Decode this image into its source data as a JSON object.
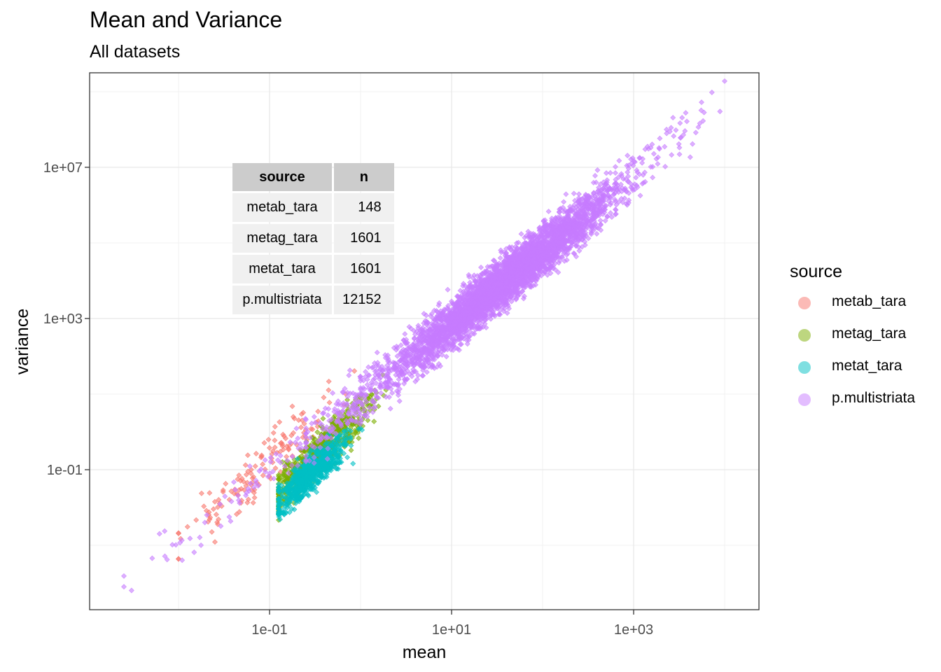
{
  "title": "Mean and Variance",
  "subtitle": "All datasets",
  "legend": {
    "title": "source",
    "items": [
      {
        "label": "metab_tara",
        "color": "#F8766D"
      },
      {
        "label": "metag_tara",
        "color": "#7CAE00"
      },
      {
        "label": "metat_tara",
        "color": "#00BFC4"
      },
      {
        "label": "p.multistriata",
        "color": "#C77CFF"
      }
    ]
  },
  "table": {
    "headers": [
      "source",
      "n"
    ],
    "rows": [
      [
        "metab_tara",
        "148"
      ],
      [
        "metag_tara",
        "1601"
      ],
      [
        "metat_tara",
        "1601"
      ],
      [
        "p.multistriata",
        "12152"
      ]
    ]
  },
  "chart_data": {
    "type": "scatter",
    "title": "Mean and Variance",
    "subtitle": "All datasets",
    "xlabel": "mean",
    "ylabel": "variance",
    "x_scale": "log10",
    "y_scale": "log10",
    "xlim": [
      0.001,
      20000
    ],
    "ylim": [
      7e-06,
      3000000000
    ],
    "x_ticks": [
      "1e-01",
      "1e+01",
      "1e+03"
    ],
    "y_ticks": [
      "1e-01",
      "1e+03",
      "1e+07"
    ],
    "grid": true,
    "legend_position": "right",
    "series": [
      {
        "name": "metab_tara",
        "color": "#F8766D",
        "n": 148,
        "x_range": [
          0.01,
          0.4
        ],
        "y_range": [
          0.0002,
          80
        ],
        "sample": [
          [
            0.012,
            0.0004
          ],
          [
            0.02,
            0.001
          ],
          [
            0.04,
            0.005
          ],
          [
            0.08,
            0.04
          ],
          [
            0.15,
            0.3
          ],
          [
            0.3,
            10
          ]
        ]
      },
      {
        "name": "metag_tara",
        "color": "#7CAE00",
        "n": 1601,
        "x_range": [
          0.15,
          3
        ],
        "y_range": [
          0.003,
          200
        ],
        "sample": [
          [
            0.2,
            0.005
          ],
          [
            0.3,
            0.05
          ],
          [
            0.5,
            0.5
          ],
          [
            1,
            5
          ],
          [
            2,
            50
          ]
        ]
      },
      {
        "name": "metat_tara",
        "color": "#00BFC4",
        "n": 1601,
        "x_range": [
          0.15,
          1
        ],
        "y_range": [
          0.003,
          8
        ],
        "sample": [
          [
            0.2,
            0.01
          ],
          [
            0.3,
            0.05
          ],
          [
            0.5,
            0.5
          ],
          [
            0.8,
            3
          ]
        ]
      },
      {
        "name": "p.multistriata",
        "color": "#C77CFF",
        "n": 12152,
        "x_range": [
          0.002,
          10000
        ],
        "y_range": [
          2e-05,
          1000000000
        ],
        "sample": [
          [
            0.002,
            2e-05
          ],
          [
            0.03,
            0.003
          ],
          [
            0.5,
            1
          ],
          [
            10,
            100
          ],
          [
            50,
            1000
          ],
          [
            300,
            30000
          ],
          [
            1000,
            1000000
          ],
          [
            8000,
            800000000
          ]
        ]
      }
    ]
  }
}
